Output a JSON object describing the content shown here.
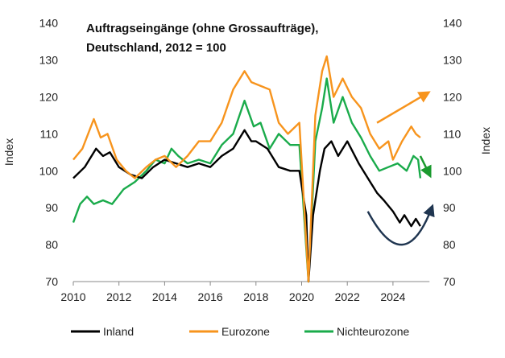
{
  "chart_data": {
    "type": "line",
    "title_line1": "Auftragseingänge (ohne Grossaufträge),",
    "title_line2": "Deutschland, 2012 = 100",
    "ylabel_left": "Index",
    "ylabel_right": "Index",
    "xlim": [
      2010,
      2025.6
    ],
    "ylim": [
      70,
      140
    ],
    "x_ticks": [
      "2010",
      "2012",
      "2014",
      "2016",
      "2018",
      "2020",
      "2022",
      "2024"
    ],
    "x_tick_values": [
      2010,
      2012,
      2014,
      2016,
      2018,
      2020,
      2022,
      2024
    ],
    "y_ticks": [
      "70",
      "80",
      "90",
      "100",
      "110",
      "120",
      "130",
      "140"
    ],
    "y_tick_values": [
      70,
      80,
      90,
      100,
      110,
      120,
      130,
      140
    ],
    "legend_position": "bottom",
    "series": [
      {
        "name": "Inland",
        "color": "#000000",
        "x": [
          2010,
          2010.5,
          2011,
          2011.3,
          2011.6,
          2012,
          2012.5,
          2013,
          2013.5,
          2014,
          2014.5,
          2015,
          2015.5,
          2016,
          2016.5,
          2017,
          2017.5,
          2017.8,
          2018,
          2018.5,
          2019,
          2019.5,
          2019.9,
          2020.2,
          2020.3,
          2020.5,
          2020.8,
          2021,
          2021.3,
          2021.6,
          2022,
          2022.5,
          2023,
          2023.3,
          2023.6,
          2024,
          2024.3,
          2024.5,
          2024.8,
          2025,
          2025.2
        ],
        "values": [
          98,
          101,
          106,
          104,
          105,
          101,
          99,
          98,
          101,
          103,
          102,
          101,
          102,
          101,
          104,
          106,
          111,
          108,
          108,
          106,
          101,
          100,
          100,
          88,
          70,
          88,
          100,
          106,
          108,
          104,
          108,
          102,
          97,
          94,
          92,
          89,
          86,
          88,
          85,
          87,
          85
        ]
      },
      {
        "name": "Eurozone",
        "color": "#F7941D",
        "x": [
          2010,
          2010.4,
          2010.9,
          2011.2,
          2011.5,
          2011.9,
          2012.3,
          2012.7,
          2013.2,
          2013.6,
          2014,
          2014.5,
          2015,
          2015.5,
          2016,
          2016.5,
          2017,
          2017.5,
          2017.8,
          2018.2,
          2018.6,
          2019,
          2019.4,
          2019.9,
          2020.3,
          2020.6,
          2020.9,
          2021.1,
          2021.4,
          2021.8,
          2022.2,
          2022.6,
          2023,
          2023.4,
          2023.8,
          2024,
          2024.4,
          2024.8,
          2025,
          2025.2
        ],
        "values": [
          103,
          106,
          114,
          109,
          110,
          103,
          100,
          98,
          101,
          103,
          104,
          101,
          104,
          108,
          108,
          113,
          122,
          127,
          124,
          123,
          122,
          113,
          110,
          113,
          70,
          115,
          127,
          131,
          120,
          125,
          120,
          117,
          110,
          106,
          108,
          103,
          108,
          112,
          110,
          109
        ]
      },
      {
        "name": "Nichteurozone",
        "color": "#1AAB4B",
        "x": [
          2010,
          2010.3,
          2010.6,
          2010.9,
          2011.3,
          2011.7,
          2012.2,
          2012.7,
          2013.2,
          2013.6,
          2014,
          2014.3,
          2014.6,
          2015,
          2015.5,
          2016,
          2016.5,
          2017,
          2017.5,
          2017.9,
          2018.2,
          2018.6,
          2019,
          2019.5,
          2019.9,
          2020.3,
          2020.6,
          2020.9,
          2021.1,
          2021.4,
          2021.8,
          2022.2,
          2022.6,
          2023,
          2023.4,
          2023.8,
          2024.2,
          2024.6,
          2024.9,
          2025.1,
          2025.2
        ],
        "values": [
          86,
          91,
          93,
          91,
          92,
          91,
          95,
          97,
          100,
          103,
          102,
          106,
          104,
          102,
          103,
          102,
          107,
          110,
          119,
          112,
          113,
          106,
          110,
          107,
          107,
          70,
          108,
          117,
          125,
          113,
          120,
          113,
          109,
          104,
          100,
          101,
          102,
          100,
          104,
          103,
          98
        ]
      }
    ],
    "annotations": [
      {
        "type": "arrow-up",
        "color": "#F7941D",
        "from": [
          2023.3,
          113
        ],
        "to": [
          2025.5,
          121
        ]
      },
      {
        "type": "arrow-down",
        "color": "#1A9A2E",
        "from": [
          2025.2,
          104
        ],
        "to": [
          2025.6,
          99
        ]
      },
      {
        "type": "curved-arrow",
        "color": "#1F3550",
        "from": [
          2022.9,
          89
        ],
        "via": [
          2024.4,
          80
        ],
        "to": [
          2025.7,
          90
        ]
      }
    ]
  }
}
